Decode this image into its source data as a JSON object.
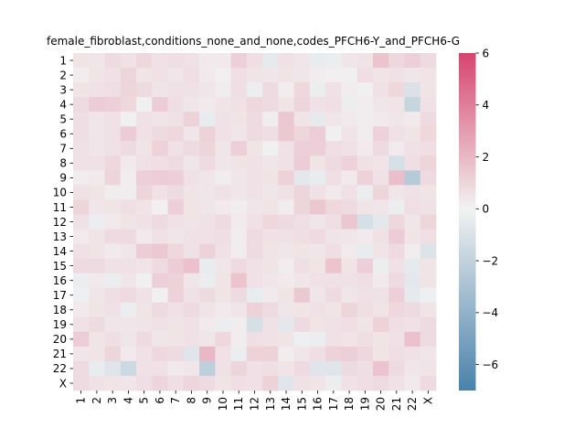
{
  "chart_data": {
    "type": "heatmap",
    "title": "female_fibroblast,conditions_none_and_none,codes_PFCH6-Y_and_PFCH6-G",
    "xlabel": "",
    "ylabel": "",
    "row_labels": [
      "1",
      "2",
      "3",
      "4",
      "5",
      "6",
      "7",
      "8",
      "9",
      "10",
      "11",
      "12",
      "13",
      "14",
      "15",
      "16",
      "17",
      "18",
      "19",
      "20",
      "21",
      "22",
      "X"
    ],
    "col_labels": [
      "1",
      "2",
      "3",
      "4",
      "5",
      "6",
      "7",
      "8",
      "9",
      "10",
      "11",
      "12",
      "13",
      "14",
      "15",
      "16",
      "17",
      "18",
      "19",
      "20",
      "21",
      "22",
      "X"
    ],
    "values": [
      [
        0.5,
        0.4,
        0.8,
        0.6,
        0.9,
        0.6,
        0.7,
        0.6,
        0.3,
        0.3,
        1.2,
        0.7,
        -0.5,
        0.6,
        0.4,
        -0.4,
        -0.3,
        0.4,
        0.5,
        1.6,
        0.9,
        1.2,
        0.8
      ],
      [
        0.2,
        0.5,
        0.6,
        1.0,
        0.5,
        0.6,
        0.4,
        0.7,
        0.3,
        0.1,
        0.7,
        0.5,
        0.4,
        0.5,
        0.4,
        0.2,
        0.1,
        0.1,
        0.7,
        0.5,
        0.6,
        0.4,
        0.5
      ],
      [
        0.5,
        0.6,
        0.7,
        1.0,
        0.8,
        0.5,
        0.6,
        0.6,
        0.4,
        0.2,
        0.7,
        -0.3,
        0.8,
        0.2,
        0.9,
        -0.3,
        0.6,
        0.2,
        0.1,
        0.6,
        0.9,
        -1.0,
        0.5
      ],
      [
        0.8,
        1.3,
        1.2,
        0.9,
        -0.1,
        1.3,
        0.7,
        0.4,
        0.3,
        0.5,
        0.6,
        0.9,
        0.8,
        0.5,
        1.0,
        0.6,
        0.7,
        -0.3,
        0.2,
        0.4,
        0.5,
        -1.8,
        0.6
      ],
      [
        0.7,
        0.4,
        0.6,
        -0.1,
        0.6,
        0.5,
        0.6,
        1.1,
        -0.4,
        0.6,
        0.5,
        0.8,
        0.2,
        1.5,
        0.5,
        -0.5,
        0.4,
        0.3,
        0.2,
        0.3,
        0.4,
        0.3,
        0.8
      ],
      [
        0.7,
        0.4,
        0.6,
        1.3,
        0.6,
        0.8,
        0.9,
        0.4,
        1.1,
        0.6,
        0.4,
        0.8,
        0.7,
        1.4,
        1.0,
        1.3,
        -0.1,
        0.5,
        0.2,
        1.1,
        0.6,
        0.5,
        0.9
      ],
      [
        0.6,
        0.4,
        0.6,
        0.8,
        0.5,
        1.1,
        0.6,
        0.8,
        1.0,
        0.4,
        1.2,
        0.5,
        -0.1,
        0.6,
        1.2,
        1.2,
        0.7,
        0.6,
        0.3,
        0.8,
        0.3,
        0.6,
        0.7
      ],
      [
        0.6,
        0.6,
        0.9,
        0.3,
        0.6,
        0.7,
        0.8,
        0.4,
        0.8,
        0.4,
        0.5,
        0.6,
        0.4,
        0.6,
        1.3,
        0.5,
        0.8,
        1.1,
        0.6,
        0.5,
        -1.2,
        0.7,
        1.0
      ],
      [
        0.2,
        0.3,
        1.0,
        0.2,
        1.2,
        1.3,
        1.2,
        0.6,
        0.4,
        0.2,
        0.4,
        0.6,
        0.5,
        1.1,
        -0.6,
        -0.4,
        0.7,
        0.3,
        1.1,
        0.6,
        1.8,
        -2.5,
        0.8
      ],
      [
        0.6,
        0.5,
        0.2,
        0.2,
        1.0,
        0.6,
        0.8,
        0.5,
        0.4,
        0.6,
        0.4,
        0.6,
        0.4,
        0.6,
        1.0,
        0.6,
        0.3,
        0.6,
        -0.3,
        1.0,
        0.4,
        0.6,
        0.5
      ],
      [
        1.0,
        0.4,
        0.5,
        0.7,
        0.5,
        0.1,
        1.2,
        0.5,
        0.4,
        0.3,
        0.2,
        0.4,
        0.5,
        0.2,
        1.0,
        1.5,
        0.9,
        0.8,
        0.5,
        0.4,
        -0.3,
        0.7,
        0.6
      ],
      [
        0.6,
        -0.3,
        0.3,
        0.5,
        0.6,
        0.8,
        0.6,
        0.5,
        0.6,
        0.8,
        0.3,
        0.6,
        0.9,
        0.8,
        0.7,
        0.4,
        0.7,
        1.5,
        -1.2,
        -0.6,
        0.9,
        0.4,
        1.0
      ],
      [
        0.3,
        0.5,
        0.8,
        0.8,
        0.3,
        0.6,
        0.4,
        0.6,
        0.6,
        0.7,
        0.2,
        0.8,
        0.6,
        0.6,
        0.7,
        0.8,
        0.5,
        0.4,
        0.3,
        0.6,
        1.3,
        0.5,
        0.7
      ],
      [
        0.6,
        0.5,
        0.3,
        0.4,
        1.3,
        1.4,
        0.9,
        0.6,
        1.1,
        0.6,
        0.2,
        0.8,
        0.5,
        0.4,
        0.5,
        0.4,
        0.7,
        0.3,
        -0.4,
        0.5,
        0.8,
        0.2,
        -0.9
      ],
      [
        0.8,
        0.8,
        0.6,
        0.6,
        0.5,
        0.8,
        1.3,
        1.7,
        -0.4,
        0.4,
        0.8,
        0.6,
        0.5,
        0.2,
        0.7,
        0.5,
        1.6,
        0.5,
        1.2,
        -0.3,
        0.6,
        -0.5,
        0.5
      ],
      [
        -0.3,
        0.3,
        -0.3,
        0.4,
        -0.1,
        1.2,
        1.1,
        0.4,
        -0.3,
        0.5,
        1.6,
        0.6,
        0.4,
        0.3,
        0.4,
        0.6,
        0.6,
        0.6,
        0.7,
        0.3,
        0.8,
        -0.6,
        0.5
      ],
      [
        -0.2,
        0.4,
        0.7,
        0.8,
        0.6,
        0.1,
        1.1,
        0.6,
        0.8,
        0.5,
        0.8,
        -0.4,
        0.3,
        0.5,
        1.4,
        0.4,
        0.8,
        0.4,
        0.6,
        0.6,
        1.2,
        -0.5,
        -0.2
      ],
      [
        0.3,
        0.5,
        0.6,
        -0.3,
        0.5,
        0.8,
        0.6,
        0.8,
        0.5,
        0.3,
        0.4,
        1.1,
        0.8,
        0.4,
        0.5,
        0.6,
        0.5,
        1.0,
        0.7,
        0.5,
        0.9,
        0.8,
        0.5
      ],
      [
        0.6,
        0.8,
        0.4,
        0.4,
        0.5,
        0.6,
        0.5,
        0.6,
        0.3,
        -0.3,
        0.2,
        -1.2,
        0.6,
        -0.6,
        0.8,
        0.5,
        0.6,
        0.7,
        0.5,
        1.1,
        0.7,
        0.6,
        0.8
      ],
      [
        1.3,
        0.5,
        0.7,
        0.4,
        0.8,
        0.4,
        0.5,
        0.6,
        0.4,
        0.9,
        0.2,
        0.7,
        0.6,
        0.5,
        -0.2,
        -0.3,
        0.6,
        0.5,
        0.7,
        0.5,
        0.6,
        1.7,
        0.8
      ],
      [
        0.4,
        0.5,
        1.0,
        0.3,
        0.6,
        0.9,
        0.8,
        -0.8,
        2.0,
        0.6,
        -0.3,
        1.1,
        1.1,
        0.2,
        0.4,
        0.7,
        1.1,
        1.2,
        0.9,
        0.5,
        0.7,
        0.6,
        0.4
      ],
      [
        0.8,
        -0.4,
        -0.8,
        -1.6,
        0.6,
        0.6,
        0.3,
        0.4,
        -2.2,
        0.6,
        1.0,
        0.6,
        0.7,
        0.5,
        0.8,
        -0.8,
        -0.8,
        0.8,
        0.7,
        1.6,
        0.8,
        0.4,
        0.5
      ],
      [
        0.8,
        0.6,
        0.5,
        0.4,
        0.7,
        1.0,
        0.7,
        1.0,
        0.8,
        0.5,
        0.7,
        0.6,
        1.1,
        -0.8,
        0.6,
        0.5,
        -0.3,
        0.6,
        0.7,
        0.8,
        0.6,
        0.3,
        0.8
      ]
    ],
    "colorbar": {
      "min": -7,
      "max": 6,
      "ticks": [
        6,
        4,
        2,
        0,
        -2,
        -4,
        -6
      ],
      "tick_labels": [
        "6",
        "4",
        "2",
        "0",
        "−2",
        "−4",
        "−6"
      ],
      "colormap": "diverging blue-white-pink",
      "colors": {
        "low": "#4a82aa",
        "mid": "#f2f2f2",
        "high": "#d6446f"
      }
    },
    "grid": false
  }
}
